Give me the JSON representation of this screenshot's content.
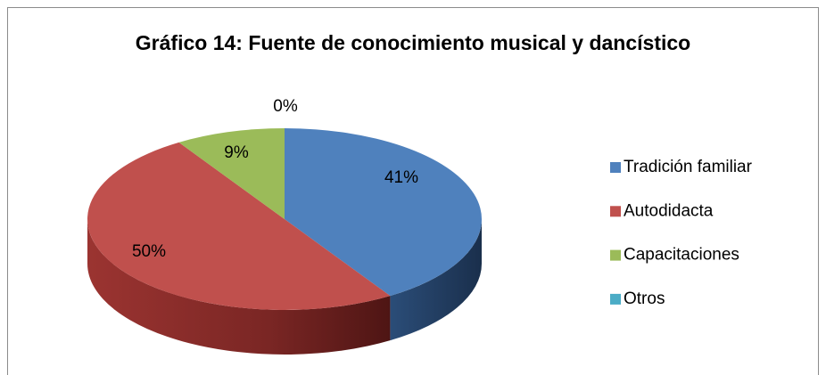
{
  "chart_data": {
    "type": "pie",
    "title": "Gráfico 14: Fuente de conocimiento musical y dancístico",
    "categories": [
      "Tradición familiar",
      "Autodidacta",
      "Capacitaciones",
      "Otros"
    ],
    "values": [
      41,
      50,
      9,
      0
    ],
    "value_labels": [
      "41%",
      "50%",
      "9%",
      "0%"
    ],
    "colors": [
      "#4f81bd",
      "#c0504d",
      "#9bbb59",
      "#4bacc6"
    ],
    "legend": "right"
  }
}
